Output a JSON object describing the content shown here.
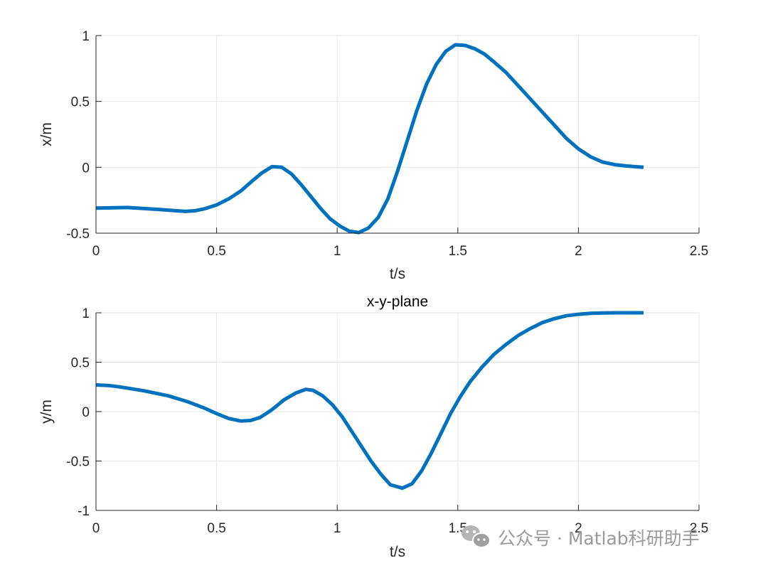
{
  "colors": {
    "line": "#0072BD",
    "axis": "#262626",
    "grid": "#e6e6e6",
    "watermark": "#9a9a9a"
  },
  "watermark": {
    "text": "公众号 · Matlab科研助手",
    "icon": "wechat-icon"
  },
  "chart_data": [
    {
      "type": "line",
      "title": "",
      "xlabel": "t/s",
      "ylabel": "x/m",
      "xlim": [
        0,
        2.5
      ],
      "ylim": [
        -0.5,
        1
      ],
      "grid": true,
      "xticks": [
        "0",
        "0.5",
        "1",
        "1.5",
        "2",
        "2.5"
      ],
      "yticks": [
        "-0.5",
        "0",
        "0.5",
        "1"
      ],
      "series": [
        {
          "x": [
            0,
            0.13,
            0.26,
            0.37,
            0.41,
            0.45,
            0.5,
            0.55,
            0.6,
            0.65,
            0.69,
            0.73,
            0.77,
            0.81,
            0.85,
            0.89,
            0.93,
            0.97,
            1.01,
            1.05,
            1.09,
            1.13,
            1.17,
            1.21,
            1.25,
            1.29,
            1.33,
            1.37,
            1.41,
            1.45,
            1.49,
            1.53,
            1.57,
            1.61,
            1.65,
            1.7,
            1.75,
            1.8,
            1.85,
            1.9,
            1.95,
            2.0,
            2.05,
            2.1,
            2.15,
            2.2,
            2.27
          ],
          "y": [
            -0.31,
            -0.305,
            -0.32,
            -0.335,
            -0.33,
            -0.315,
            -0.285,
            -0.24,
            -0.18,
            -0.1,
            -0.04,
            0.005,
            0.0,
            -0.05,
            -0.13,
            -0.22,
            -0.31,
            -0.39,
            -0.445,
            -0.485,
            -0.495,
            -0.46,
            -0.38,
            -0.24,
            -0.03,
            0.2,
            0.43,
            0.63,
            0.78,
            0.88,
            0.93,
            0.925,
            0.9,
            0.86,
            0.8,
            0.72,
            0.62,
            0.52,
            0.42,
            0.32,
            0.22,
            0.14,
            0.08,
            0.04,
            0.02,
            0.01,
            0.0
          ]
        }
      ]
    },
    {
      "type": "line",
      "title": "x-y-plane",
      "xlabel": "t/s",
      "ylabel": "y/m",
      "xlim": [
        0,
        2.5
      ],
      "ylim": [
        -1,
        1
      ],
      "grid": true,
      "xticks": [
        "0",
        "0.5",
        "1",
        "1.5",
        "2",
        "2.5"
      ],
      "yticks": [
        "-1",
        "-0.5",
        "0",
        "0.5",
        "1"
      ],
      "series": [
        {
          "x": [
            0,
            0.05,
            0.1,
            0.2,
            0.3,
            0.38,
            0.45,
            0.5,
            0.55,
            0.6,
            0.64,
            0.68,
            0.73,
            0.78,
            0.83,
            0.87,
            0.9,
            0.94,
            0.98,
            1.02,
            1.06,
            1.1,
            1.14,
            1.18,
            1.22,
            1.27,
            1.31,
            1.35,
            1.39,
            1.43,
            1.47,
            1.51,
            1.55,
            1.6,
            1.65,
            1.7,
            1.75,
            1.8,
            1.85,
            1.9,
            1.95,
            2.0,
            2.05,
            2.1,
            2.15,
            2.2,
            2.27
          ],
          "y": [
            0.27,
            0.265,
            0.25,
            0.21,
            0.16,
            0.1,
            0.035,
            -0.02,
            -0.07,
            -0.095,
            -0.09,
            -0.06,
            0.02,
            0.12,
            0.19,
            0.225,
            0.215,
            0.16,
            0.07,
            -0.05,
            -0.2,
            -0.35,
            -0.5,
            -0.63,
            -0.74,
            -0.775,
            -0.73,
            -0.6,
            -0.42,
            -0.22,
            -0.02,
            0.15,
            0.3,
            0.45,
            0.58,
            0.68,
            0.77,
            0.84,
            0.9,
            0.94,
            0.97,
            0.985,
            0.995,
            0.998,
            1.0,
            1.0,
            1.0
          ]
        }
      ]
    }
  ]
}
